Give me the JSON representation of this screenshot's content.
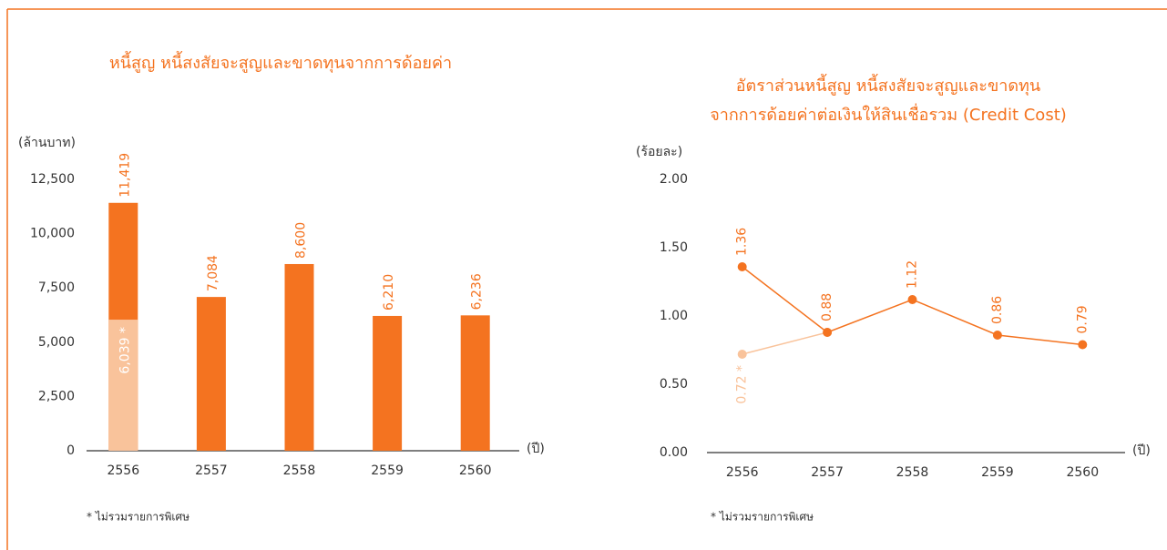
{
  "chart_data": [
    {
      "type": "bar",
      "title": "หนี้สูญ หนี้สงสัยจะสูญและขาดทุนจากการด้อยค่า",
      "ylabel": "(ล้านบาท)",
      "xlabel": "(ปี)",
      "categories": [
        "2556",
        "2557",
        "2558",
        "2559",
        "2560"
      ],
      "series": [
        {
          "color": "#f47320",
          "values": [
            11419,
            7084,
            8600,
            6210,
            6236
          ],
          "value_labels": [
            "11,419",
            "7,084",
            "8,600",
            "6,210",
            "6,236"
          ]
        },
        {
          "color": "#f9c39b",
          "values": [
            6039,
            null,
            null,
            null,
            null
          ],
          "value_labels": [
            "6,039 *",
            null,
            null,
            null,
            null
          ]
        }
      ],
      "ylim": [
        0,
        12500
      ],
      "yticks": [
        0,
        {
          "value": 2500,
          "label": "2,500"
        },
        {
          "value": 5000,
          "label": "5,000"
        },
        {
          "value": 7500,
          "label": "7,500"
        },
        {
          "value": 10000,
          "label": "10,000"
        },
        {
          "value": 12500,
          "label": "12,500"
        }
      ],
      "note": "*  ไม่รวมรายการพิเศษ"
    },
    {
      "type": "line",
      "title": [
        "อัตราส่วนหนี้สูญ หนี้สงสัยจะสูญและขาดทุน",
        "จากการด้อยค่าต่อเงินให้สินเชื่อรวม (Credit Cost)"
      ],
      "ylabel": "(ร้อยละ)",
      "xlabel": "(ปี)",
      "categories": [
        "2556",
        "2557",
        "2558",
        "2559",
        "2560"
      ],
      "series": [
        {
          "color": "#f47320",
          "values": [
            1.36,
            0.88,
            1.12,
            0.86,
            0.79
          ]
        },
        {
          "color": "#f9c39b",
          "values": [
            0.72,
            0.88,
            null,
            null,
            null
          ],
          "value_labels": [
            "0.72 *",
            null,
            null,
            null,
            null
          ]
        }
      ],
      "ylim": [
        0,
        2
      ],
      "yticks": [
        {
          "value": 0,
          "label": "0.00"
        },
        {
          "value": 0.5,
          "label": "0.50"
        },
        {
          "value": 1,
          "label": "1.00"
        },
        {
          "value": 1.5,
          "label": "1.50"
        },
        {
          "value": 2,
          "label": "2.00"
        }
      ],
      "note": "*  ไม่รวมรายการพิเศษ"
    }
  ]
}
